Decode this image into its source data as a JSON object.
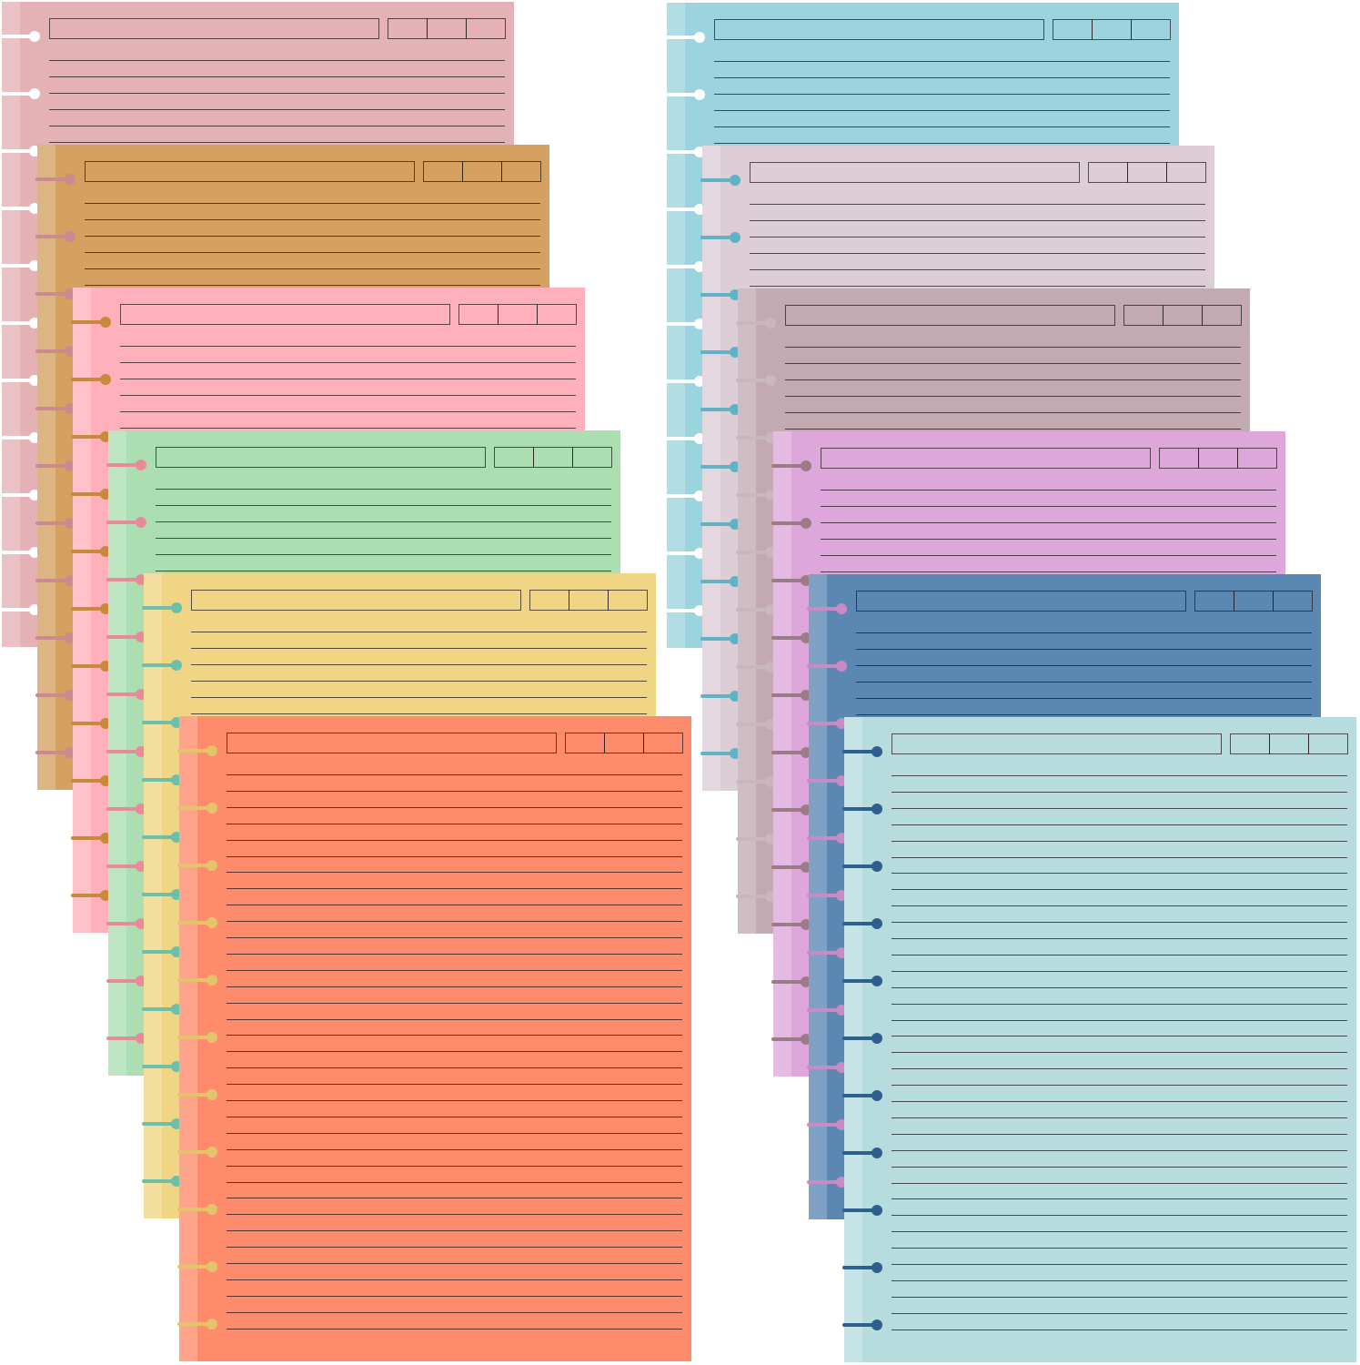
{
  "stacks": [
    {
      "sheets": [
        {
          "color": "#e4b1b5",
          "ring": "#ffffff"
        },
        {
          "color": "#d4a160",
          "ring": "#c98a90"
        },
        {
          "color": "#ffb0bb",
          "ring": "#c8893c"
        },
        {
          "color": "#abdeb0",
          "ring": "#e98a9a"
        },
        {
          "color": "#efd584",
          "ring": "#6cbfa8"
        },
        {
          "color": "#fe8b6b",
          "ring": "#e3c46a"
        }
      ]
    },
    {
      "sheets": [
        {
          "color": "#9bd4de",
          "ring": "#ffffff"
        },
        {
          "color": "#dccdd6",
          "ring": "#5fb3c4"
        },
        {
          "color": "#c3a9b2",
          "ring": "#c9b6c1"
        },
        {
          "color": "#dea7dc",
          "ring": "#9a7c87"
        },
        {
          "color": "#5b87b3",
          "ring": "#c98ac6"
        },
        {
          "color": "#b6dcde",
          "ring": "#2f5f8f"
        }
      ]
    }
  ]
}
